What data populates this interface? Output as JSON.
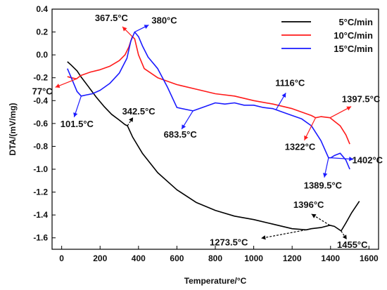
{
  "chart_data": {
    "type": "line",
    "title": "",
    "xlabel": "Temperature/°C",
    "ylabel": "DTA/(mV/mg)",
    "xlim": [
      -50,
      1650
    ],
    "ylim": [
      -1.7,
      0.4
    ],
    "xticks": [
      0,
      200,
      400,
      600,
      800,
      1000,
      1200,
      1400,
      1600
    ],
    "xtick_labels": [
      "0",
      "200",
      "400",
      "600",
      "800",
      "1000",
      "1200",
      "1400",
      "1600"
    ],
    "yticks": [
      -1.6,
      -1.4,
      -1.2,
      -1.0,
      -0.8,
      -0.6,
      -0.4,
      -0.2,
      0.0,
      0.2,
      0.4
    ],
    "ytick_labels": [
      "-1.6",
      "-1.4",
      "-1.2",
      "-1.0",
      "-0.8",
      "-0.6",
      "-0.4",
      "-0.2",
      "0.0",
      "0.2",
      "0.4"
    ],
    "grid": false,
    "legend_position": "top-right",
    "series": [
      {
        "name": "5°C/min",
        "color": "#000000",
        "x": [
          30,
          50,
          80,
          100,
          140,
          180,
          220,
          260,
          300,
          330,
          342.5,
          370,
          420,
          500,
          600,
          700,
          800,
          900,
          1000,
          1100,
          1200,
          1273.5,
          1300,
          1350,
          1396,
          1420,
          1455,
          1480,
          1510,
          1550
        ],
        "y": [
          -0.06,
          -0.09,
          -0.14,
          -0.19,
          -0.28,
          -0.37,
          -0.45,
          -0.52,
          -0.57,
          -0.61,
          -0.62,
          -0.72,
          -0.86,
          -1.03,
          -1.18,
          -1.29,
          -1.36,
          -1.41,
          -1.44,
          -1.48,
          -1.52,
          -1.53,
          -1.52,
          -1.51,
          -1.49,
          -1.5,
          -1.54,
          -1.47,
          -1.38,
          -1.28
        ]
      },
      {
        "name": "10°C/min",
        "color": "#ff1a1a",
        "x": [
          30,
          50,
          77,
          100,
          150,
          200,
          250,
          300,
          330,
          350,
          367.5,
          380,
          400,
          430,
          500,
          600,
          700,
          800,
          900,
          1000,
          1100,
          1200,
          1250,
          1300,
          1322,
          1350,
          1397.5,
          1420,
          1450,
          1480,
          1500
        ],
        "y": [
          -0.19,
          -0.2,
          -0.21,
          -0.18,
          -0.15,
          -0.13,
          -0.1,
          -0.05,
          0.0,
          0.07,
          0.16,
          0.14,
          0.0,
          -0.12,
          -0.2,
          -0.26,
          -0.3,
          -0.34,
          -0.36,
          -0.4,
          -0.43,
          -0.47,
          -0.5,
          -0.53,
          -0.55,
          -0.54,
          -0.55,
          -0.58,
          -0.62,
          -0.7,
          -0.78
        ]
      },
      {
        "name": "15°C/min",
        "color": "#1a1aff",
        "x": [
          30,
          50,
          80,
          101.5,
          130,
          160,
          200,
          250,
          300,
          340,
          360,
          380,
          400,
          420,
          450,
          500,
          550,
          600,
          683.5,
          750,
          800,
          850,
          900,
          950,
          1000,
          1050,
          1100,
          1116,
          1150,
          1200,
          1250,
          1300,
          1350,
          1389.5,
          1402,
          1420,
          1450,
          1480,
          1500
        ],
        "y": [
          -0.12,
          -0.2,
          -0.32,
          -0.36,
          -0.35,
          -0.34,
          -0.31,
          -0.25,
          -0.16,
          -0.03,
          0.12,
          0.2,
          0.16,
          0.08,
          -0.02,
          -0.12,
          -0.28,
          -0.46,
          -0.49,
          -0.45,
          -0.42,
          -0.43,
          -0.42,
          -0.44,
          -0.44,
          -0.46,
          -0.47,
          -0.48,
          -0.5,
          -0.53,
          -0.56,
          -0.62,
          -0.75,
          -0.9,
          -0.9,
          -0.88,
          -0.86,
          -0.92,
          -1.0
        ]
      }
    ],
    "annotations": [
      {
        "text": "367.5°C",
        "x": 367.5,
        "y": 0.16,
        "color": "#ff1a1a"
      },
      {
        "text": "380°C",
        "x": 380,
        "y": 0.2,
        "color": "#1a1aff"
      },
      {
        "text": "77°C",
        "x": 77,
        "y": -0.21,
        "color": "#ff1a1a"
      },
      {
        "text": "101.5°C",
        "x": 101.5,
        "y": -0.36,
        "color": "#1a1aff"
      },
      {
        "text": "342.5°C",
        "x": 342.5,
        "y": -0.62,
        "color": "#000000"
      },
      {
        "text": "683.5°C",
        "x": 683.5,
        "y": -0.49,
        "color": "#1a1aff"
      },
      {
        "text": "1116°C",
        "x": 1116,
        "y": -0.48,
        "color": "#1a1aff"
      },
      {
        "text": "1322°C",
        "x": 1322,
        "y": -0.55,
        "color": "#ff1a1a"
      },
      {
        "text": "1397.5°C",
        "x": 1397.5,
        "y": -0.55,
        "color": "#ff1a1a"
      },
      {
        "text": "1402°C",
        "x": 1402,
        "y": -0.9,
        "color": "#1a1aff"
      },
      {
        "text": "1389.5°C",
        "x": 1389.5,
        "y": -0.9,
        "color": "#1a1aff"
      },
      {
        "text": "1396°C",
        "x": 1396,
        "y": -1.49,
        "color": "#000000"
      },
      {
        "text": "1273.5°C",
        "x": 1273.5,
        "y": -1.53,
        "color": "#000000"
      },
      {
        "text": "1455°C",
        "x": 1455,
        "y": -1.54,
        "color": "#000000"
      }
    ]
  }
}
